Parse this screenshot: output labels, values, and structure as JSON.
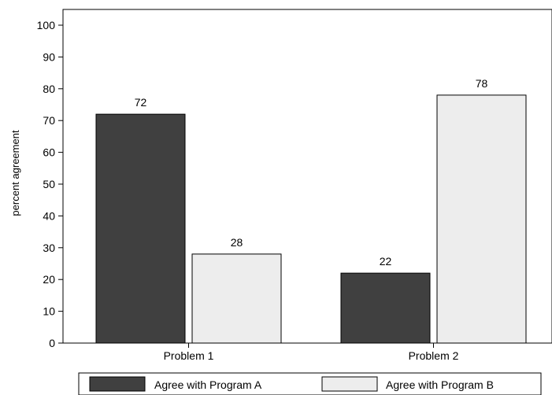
{
  "chart_data": {
    "type": "bar",
    "categories": [
      "Problem 1",
      "Problem 2"
    ],
    "series": [
      {
        "name": "Agree with Program A",
        "values": [
          72,
          22
        ],
        "color": "#404040"
      },
      {
        "name": "Agree with Program B",
        "values": [
          28,
          78
        ],
        "color": "#ededed"
      }
    ],
    "title": "",
    "xlabel": "",
    "ylabel": "percent agreement",
    "ylim": [
      0,
      100
    ],
    "yticks": [
      0,
      10,
      20,
      30,
      40,
      50,
      60,
      70,
      80,
      90,
      100
    ],
    "grid": false,
    "legend_position": "bottom",
    "data_labels": true
  }
}
